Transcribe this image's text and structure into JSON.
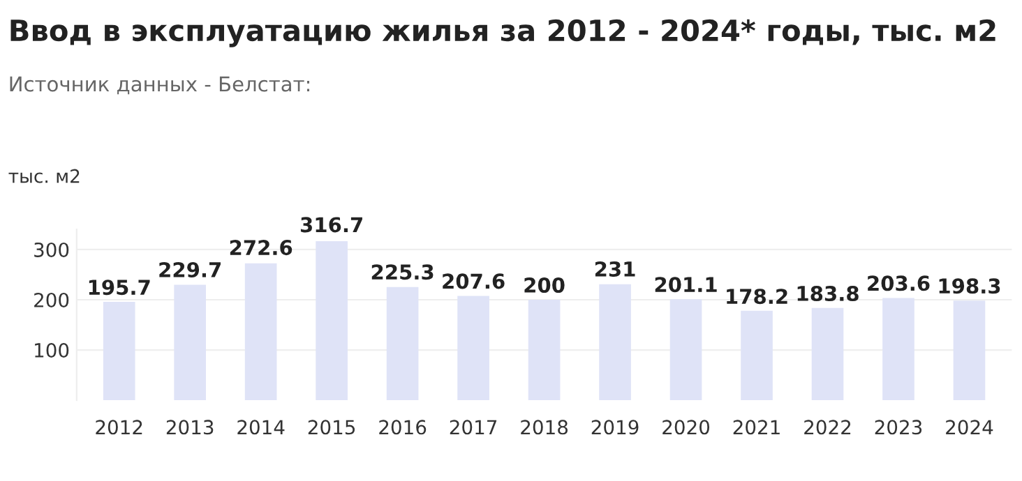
{
  "chart_data": {
    "type": "bar",
    "title": "Ввод в эксплуатацию жилья за 2012 - 2024* годы, тыс. м2",
    "subtitle": "Источник данных - Белстат:",
    "ylabel": "тыс. м2",
    "categories": [
      "2012",
      "2013",
      "2014",
      "2015",
      "2016",
      "2017",
      "2018",
      "2019",
      "2020",
      "2021",
      "2022",
      "2023",
      "2024"
    ],
    "values": [
      195.7,
      229.7,
      272.6,
      316.7,
      225.3,
      207.6,
      200,
      231,
      201.1,
      178.2,
      183.8,
      203.6,
      198.3
    ],
    "color": "#dfe3f7",
    "ylim": [
      0,
      340
    ],
    "yticks": [
      100,
      200,
      300
    ],
    "grid": "y",
    "data_labels": true
  }
}
